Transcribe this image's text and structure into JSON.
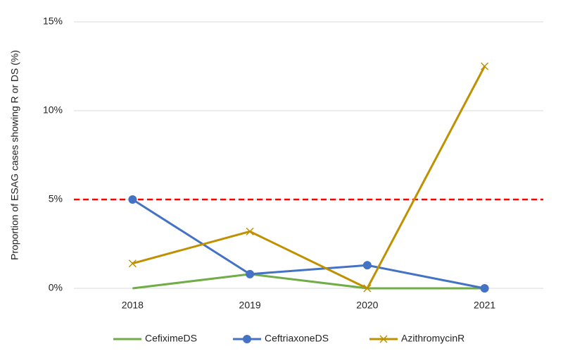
{
  "chart_data": {
    "type": "line",
    "y_label": "Proportion of ESAG cases showing R or DS (%)",
    "categories": [
      "2018",
      "2019",
      "2020",
      "2021"
    ],
    "series": [
      {
        "name": "CefiximeDS",
        "color": "#70ad47",
        "marker": "none",
        "values": [
          0,
          0.8,
          0,
          0
        ]
      },
      {
        "name": "CeftriaxoneDS",
        "color": "#4472c4",
        "marker": "circle",
        "values": [
          5,
          0.8,
          1.3,
          0
        ]
      },
      {
        "name": "AzithromycinR",
        "color": "#bf9000",
        "marker": "x",
        "values": [
          1.4,
          3.2,
          0,
          12.5
        ]
      }
    ],
    "ylim": [
      0,
      15
    ],
    "yticks": [
      {
        "value": 0,
        "label": "0%"
      },
      {
        "value": 5,
        "label": "5%"
      },
      {
        "value": 10,
        "label": "10%"
      },
      {
        "value": 15,
        "label": "15%"
      }
    ],
    "grid": true,
    "reference_line": {
      "value": 5,
      "color": "#ff0000"
    },
    "legend": "bottom"
  }
}
